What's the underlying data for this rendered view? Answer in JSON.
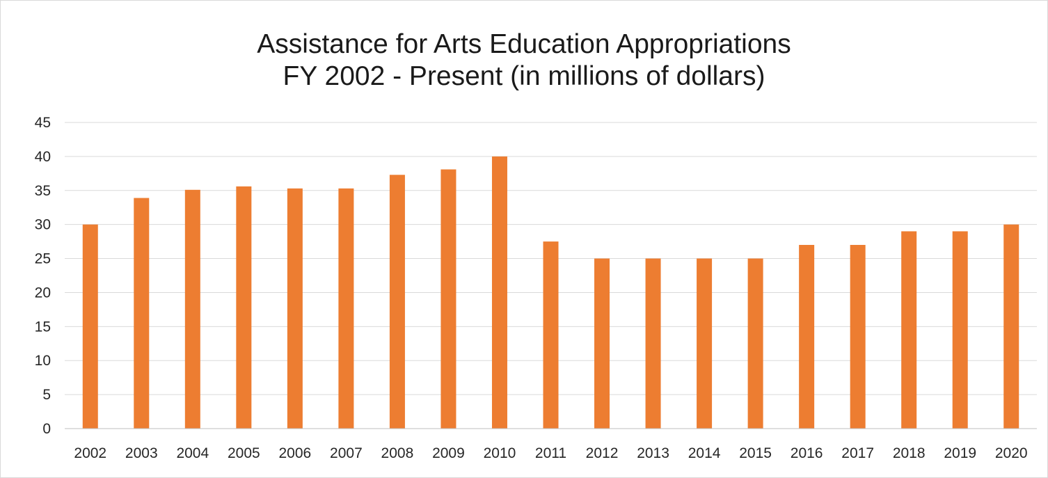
{
  "chart_data": {
    "type": "bar",
    "title_lines": [
      "Assistance for Arts Education Appropriations",
      "FY 2002 - Present (in millions of dollars)"
    ],
    "xlabel": "",
    "ylabel": "",
    "categories": [
      "2002",
      "2003",
      "2004",
      "2005",
      "2006",
      "2007",
      "2008",
      "2009",
      "2010",
      "2011",
      "2012",
      "2013",
      "2014",
      "2015",
      "2016",
      "2017",
      "2018",
      "2019",
      "2020"
    ],
    "values": [
      30,
      33.9,
      35.1,
      35.6,
      35.3,
      35.3,
      37.3,
      38.1,
      40,
      27.5,
      25,
      25,
      25,
      25,
      27,
      27,
      29,
      29,
      30
    ],
    "ylim": [
      0,
      45
    ],
    "yticks": [
      0,
      5,
      10,
      15,
      20,
      25,
      30,
      35,
      40,
      45
    ],
    "grid": true,
    "legend": "none",
    "bar_color": "#ED7D31",
    "grid_color": "#d9d9d9"
  }
}
